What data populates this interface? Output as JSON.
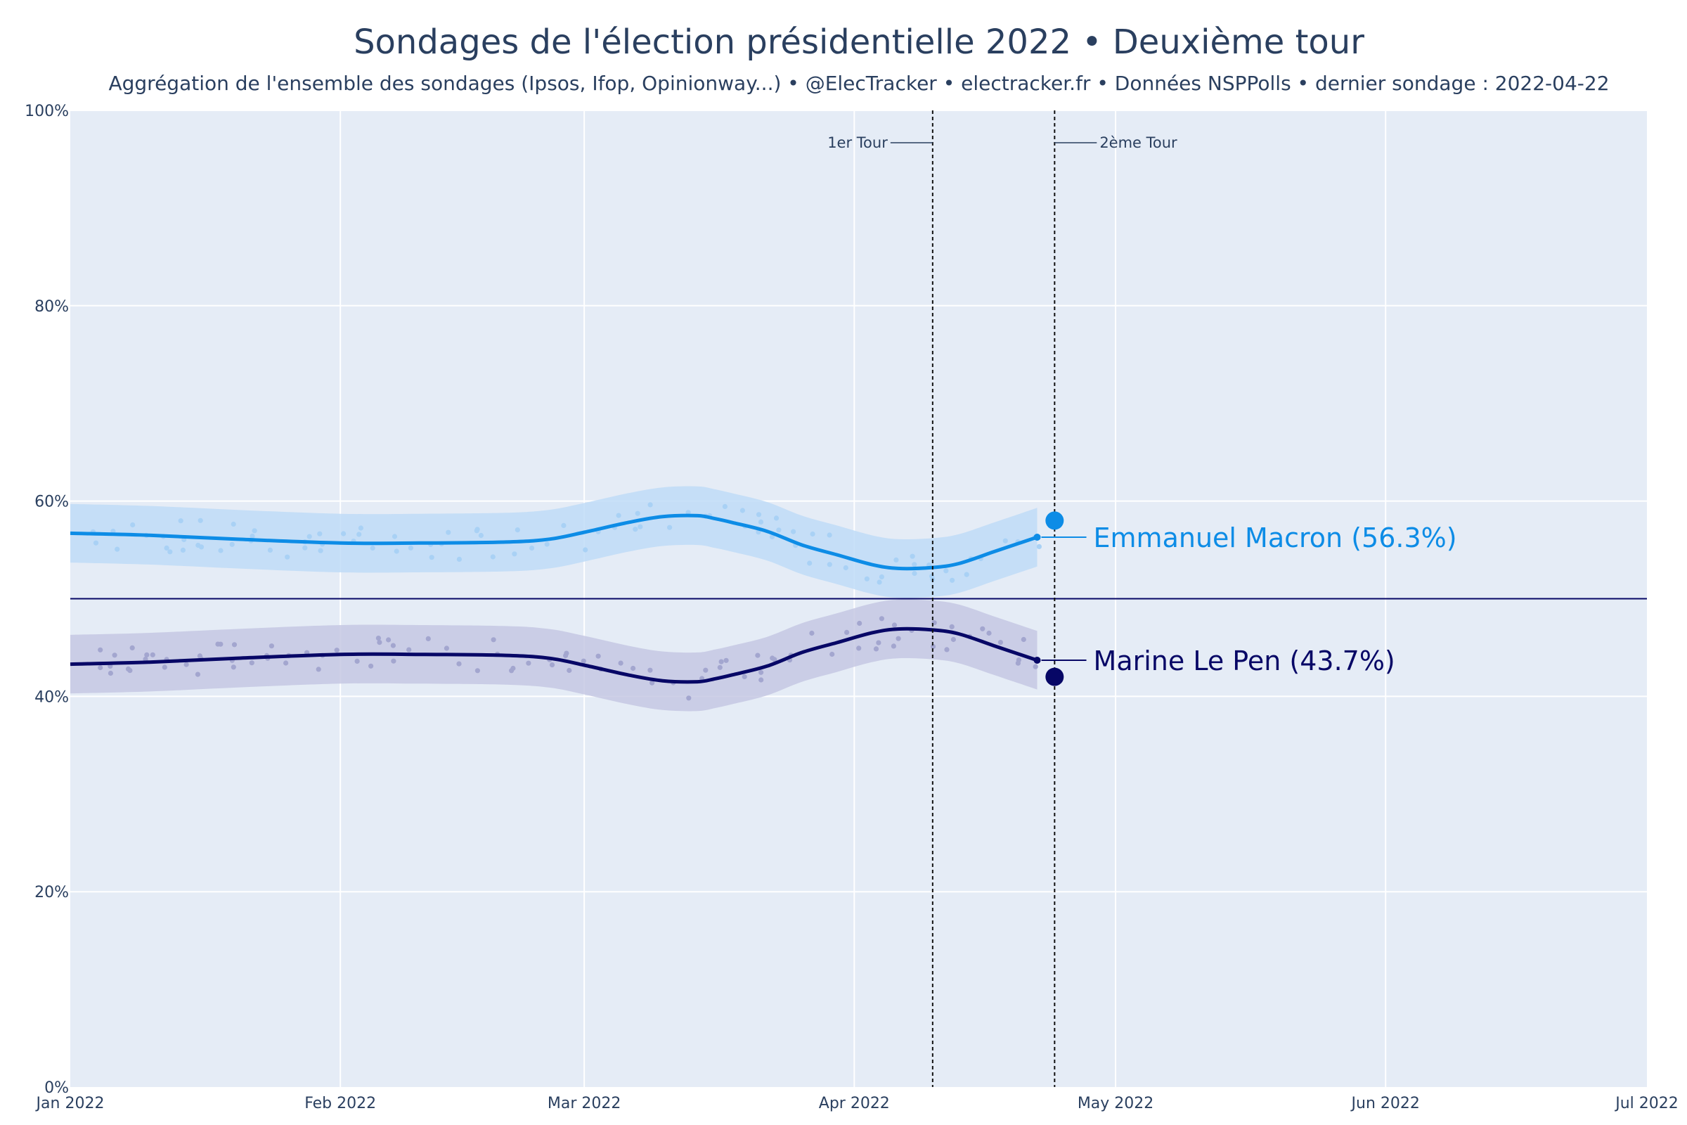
{
  "chart_data": {
    "type": "line",
    "title": "Sondages de l'élection présidentielle 2022 • Deuxième tour",
    "subtitle": "Aggrégation de l'ensemble des sondages (Ipsos, Ifop, Opinionway...) • @ElecTracker • electracker.fr • Données NSPPolls • dernier sondage : 2022-04-22",
    "xlabel": "",
    "ylabel": "",
    "x_range": [
      "2022-01-01",
      "2022-07-01"
    ],
    "ylim": [
      0,
      100
    ],
    "y_ticks": [
      0,
      20,
      40,
      60,
      80,
      100
    ],
    "y_tick_labels": [
      "0%",
      "20%",
      "40%",
      "60%",
      "80%",
      "100%"
    ],
    "x_ticks": [
      {
        "date": "2022-01-01",
        "label": "Jan 2022"
      },
      {
        "date": "2022-02-01",
        "label": "Feb 2022"
      },
      {
        "date": "2022-03-01",
        "label": "Mar 2022"
      },
      {
        "date": "2022-04-01",
        "label": "Apr 2022"
      },
      {
        "date": "2022-05-01",
        "label": "May 2022"
      },
      {
        "date": "2022-06-01",
        "label": "Jun 2022"
      },
      {
        "date": "2022-07-01",
        "label": "Jul 2022"
      }
    ],
    "reference_line_y": 50,
    "grid": true,
    "events": [
      {
        "date": "2022-04-10",
        "label": "1er Tour",
        "side": "left"
      },
      {
        "date": "2022-04-24",
        "label": "2ème Tour",
        "side": "right"
      }
    ],
    "series": [
      {
        "name": "Emmanuel Macron",
        "end_label": "Emmanuel Macron (56.3%)",
        "color": "#0d8ce6",
        "band_color": "#bfdcf7",
        "dot_color": "#a9d1f5",
        "dates": [
          "2022-01-01",
          "2022-01-10",
          "2022-01-20",
          "2022-02-01",
          "2022-02-10",
          "2022-02-20",
          "2022-02-25",
          "2022-03-01",
          "2022-03-06",
          "2022-03-10",
          "2022-03-14",
          "2022-03-16",
          "2022-03-18",
          "2022-03-22",
          "2022-03-26",
          "2022-03-30",
          "2022-04-03",
          "2022-04-06",
          "2022-04-10",
          "2022-04-13",
          "2022-04-17",
          "2022-04-20",
          "2022-04-22"
        ],
        "values": [
          56.7,
          56.5,
          56.1,
          55.7,
          55.7,
          55.8,
          56.1,
          56.8,
          57.8,
          58.4,
          58.5,
          58.2,
          57.8,
          56.9,
          55.5,
          54.5,
          53.5,
          53.1,
          53.2,
          53.6,
          54.8,
          55.7,
          56.3
        ],
        "band_width": 3.0,
        "final_result": 58.0
      },
      {
        "name": "Marine Le Pen",
        "end_label": "Marine Le Pen (43.7%)",
        "color": "#070766",
        "band_color": "#c5c8e3",
        "dot_color": "#a3a6cf",
        "dates": [
          "2022-01-01",
          "2022-01-10",
          "2022-01-20",
          "2022-02-01",
          "2022-02-10",
          "2022-02-20",
          "2022-02-25",
          "2022-03-01",
          "2022-03-06",
          "2022-03-10",
          "2022-03-14",
          "2022-03-16",
          "2022-03-18",
          "2022-03-22",
          "2022-03-26",
          "2022-03-30",
          "2022-04-03",
          "2022-04-06",
          "2022-04-10",
          "2022-04-13",
          "2022-04-17",
          "2022-04-20",
          "2022-04-22"
        ],
        "values": [
          43.3,
          43.5,
          43.9,
          44.3,
          44.3,
          44.2,
          43.9,
          43.2,
          42.2,
          41.6,
          41.5,
          41.8,
          42.2,
          43.1,
          44.5,
          45.5,
          46.5,
          46.9,
          46.8,
          46.4,
          45.2,
          44.3,
          43.7
        ],
        "band_width": 3.0,
        "final_result": 42.0
      }
    ]
  }
}
